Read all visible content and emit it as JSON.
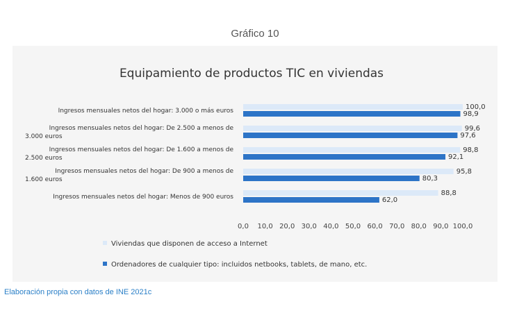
{
  "figure_label": "Gráfico 10",
  "source_note": "Elaboración propia con datos de INE 2021c",
  "colors": {
    "internet": "#dce9f8",
    "computers": "#2d74c7",
    "panel": "#f5f5f5",
    "source": "#2a7fc7"
  },
  "chart_data": {
    "type": "bar",
    "orientation": "horizontal",
    "title": "Equipamiento de productos TIC  en viviendas",
    "categories": [
      [
        "Ingresos mensuales netos del hogar: 3.000 o más euros"
      ],
      [
        "Ingresos mensuales netos del hogar: De 2.500 a menos de",
        "3.000 euros"
      ],
      [
        "Ingresos mensuales netos del hogar: De 1.600 a menos de",
        "2.500 euros"
      ],
      [
        "Ingresos mensuales netos del hogar: De 900 a menos de",
        "1.600 euros"
      ],
      [
        "Ingresos mensuales netos del hogar: Menos de 900 euros"
      ]
    ],
    "series": [
      {
        "name": "Viviendas que disponen de acceso a Internet",
        "values": [
          100.0,
          99.6,
          98.8,
          95.8,
          88.8
        ],
        "labels": [
          "100,0",
          "99,6",
          "98,8",
          "95,8",
          "88,8"
        ]
      },
      {
        "name": "Ordenadores de cualquier tipo: incluidos netbooks, tablets, de mano, etc.",
        "values": [
          98.9,
          97.6,
          92.1,
          80.3,
          62.0
        ],
        "labels": [
          "98,9",
          "97,6",
          "92,1",
          "80,3",
          "62,0"
        ]
      }
    ],
    "xlim": [
      0,
      100
    ],
    "xticks": [
      "0,0",
      "10,0",
      "20,0",
      "30,0",
      "40,0",
      "50,0",
      "60,0",
      "70,0",
      "80,0",
      "90,0",
      "100,0"
    ],
    "grid": false,
    "legend_position": "bottom"
  }
}
